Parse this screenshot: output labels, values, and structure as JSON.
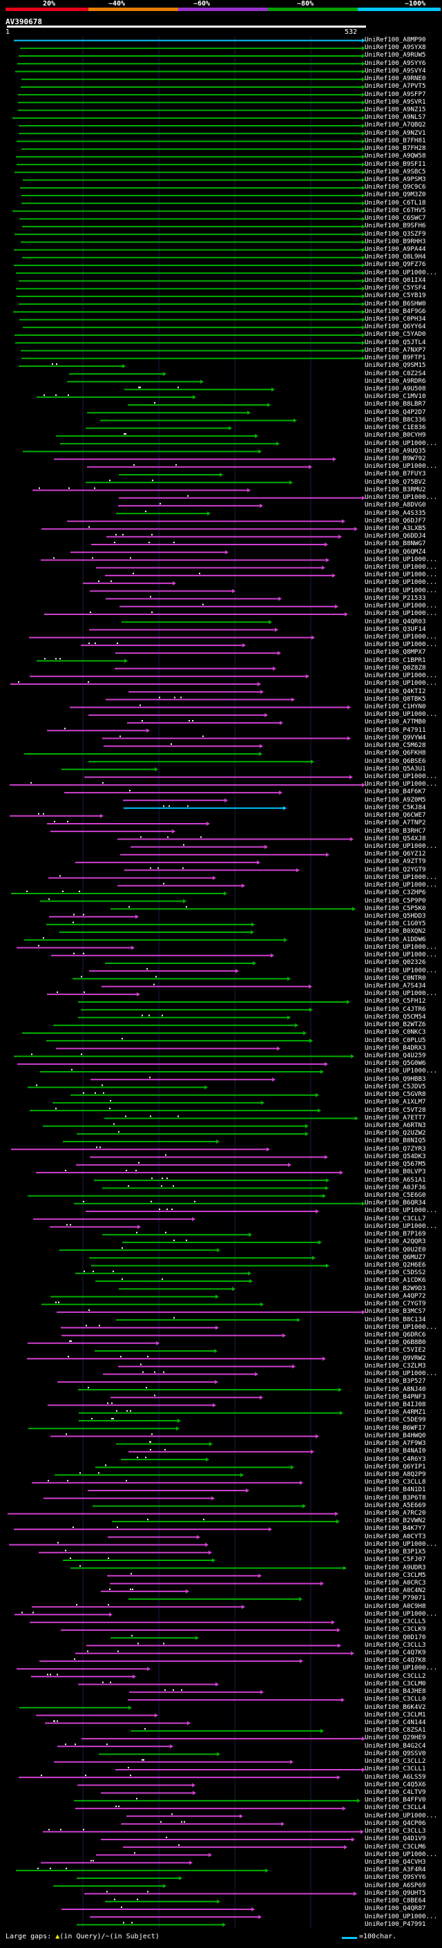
{
  "scale": {
    "labels": [
      "20%",
      "~40%",
      "~60%",
      "~80%",
      "~100%"
    ],
    "colors": [
      "#e8001a",
      "#e87d00",
      "#9933cc",
      "#00a000",
      "#00c8ff"
    ]
  },
  "query": {
    "name": "AV390678",
    "start": "1",
    "end": "532"
  },
  "hit_colors": {
    "cyan": "#00c8ff",
    "green": "#00b000",
    "magenta": "#d040d0"
  },
  "hits": [
    {
      "id": "UniRef100_A8MP90",
      "c": "cyan"
    },
    {
      "id": "UniRef100_A9SYX8",
      "c": "green"
    },
    {
      "id": "UniRef100_A9RUW5",
      "c": "green"
    },
    {
      "id": "UniRef100_A9SYY6",
      "c": "green"
    },
    {
      "id": "UniRef100_A9SVY4",
      "c": "green"
    },
    {
      "id": "UniRef100_A9RNE0",
      "c": "green"
    },
    {
      "id": "UniRef100_A7PVT5",
      "c": "green"
    },
    {
      "id": "UniRef100_A9SFP7",
      "c": "green"
    },
    {
      "id": "UniRef100_A9SVR1",
      "c": "green"
    },
    {
      "id": "UniRef100_A9NZ15",
      "c": "green"
    },
    {
      "id": "UniRef100_A9NLS7",
      "c": "green"
    },
    {
      "id": "UniRef100_A7QBQ2",
      "c": "green"
    },
    {
      "id": "UniRef100_A9NZV1",
      "c": "green"
    },
    {
      "id": "UniRef100_B7FH81",
      "c": "green"
    },
    {
      "id": "UniRef100_B7FH28",
      "c": "green"
    },
    {
      "id": "UniRef100_A9QW58",
      "c": "green"
    },
    {
      "id": "UniRef100_B9SFI1",
      "c": "green"
    },
    {
      "id": "UniRef100_A9SBC5",
      "c": "green"
    },
    {
      "id": "UniRef100_A9PSM3",
      "c": "green"
    },
    {
      "id": "UniRef100_Q9C9C6",
      "c": "green"
    },
    {
      "id": "UniRef100_Q9M3Z0",
      "c": "green"
    },
    {
      "id": "UniRef100_C6TL18",
      "c": "green"
    },
    {
      "id": "UniRef100_C6THV5",
      "c": "green"
    },
    {
      "id": "UniRef100_C6SWC7",
      "c": "green"
    },
    {
      "id": "UniRef100_B9SFH6",
      "c": "green"
    },
    {
      "id": "UniRef100_Q3SZF9",
      "c": "green"
    },
    {
      "id": "UniRef100_B9RHH3",
      "c": "green"
    },
    {
      "id": "UniRef100_A9PA44",
      "c": "green"
    },
    {
      "id": "UniRef100_Q8L9H4",
      "c": "green"
    },
    {
      "id": "UniRef100_Q9FZ76",
      "c": "green"
    },
    {
      "id": "UniRef100_UP1000...",
      "c": "green"
    },
    {
      "id": "UniRef100_Q01IX4",
      "c": "green"
    },
    {
      "id": "UniRef100_C5YSF4",
      "c": "green"
    },
    {
      "id": "UniRef100_C5YB19",
      "c": "green"
    },
    {
      "id": "UniRef100_B6SHW0",
      "c": "green"
    },
    {
      "id": "UniRef100_B4F9G6",
      "c": "green"
    },
    {
      "id": "UniRef100_C0PH34",
      "c": "green"
    },
    {
      "id": "UniRef100_Q6YY64",
      "c": "green"
    },
    {
      "id": "UniRef100_C5YAD0",
      "c": "green"
    },
    {
      "id": "UniRef100_Q5JTL4",
      "c": "green"
    },
    {
      "id": "UniRef100_A7NXP7",
      "c": "green"
    },
    {
      "id": "UniRef100_B9FTP1",
      "c": "green"
    },
    {
      "id": "UniRef100_Q9SM15",
      "c": "green"
    },
    {
      "id": "UniRef100_C0Z2S4",
      "c": "green"
    },
    {
      "id": "UniRef100_A9RDR6",
      "c": "green"
    },
    {
      "id": "UniRef100_A9U508",
      "c": "green"
    },
    {
      "id": "UniRef100_C1MV10",
      "c": "green"
    },
    {
      "id": "UniRef100_B8LBR7",
      "c": "green"
    },
    {
      "id": "UniRef100_Q4P2D7",
      "c": "green"
    },
    {
      "id": "UniRef100_B8C336",
      "c": "green"
    },
    {
      "id": "UniRef100_C1E836",
      "c": "green"
    },
    {
      "id": "UniRef100_B0CYH9",
      "c": "green"
    },
    {
      "id": "UniRef100_UP1000...",
      "c": "green"
    },
    {
      "id": "UniRef100_A9UQ35",
      "c": "green"
    },
    {
      "id": "UniRef100_B9W792",
      "c": "magenta"
    },
    {
      "id": "UniRef100_UP1000...",
      "c": "magenta"
    },
    {
      "id": "UniRef100_B7FUY3",
      "c": "green"
    },
    {
      "id": "UniRef100_Q75BV2",
      "c": "green"
    },
    {
      "id": "UniRef100_B3RMU2",
      "c": "magenta"
    },
    {
      "id": "UniRef100_UP1000...",
      "c": "magenta"
    },
    {
      "id": "UniRef100_A8DVG0",
      "c": "magenta"
    },
    {
      "id": "UniRef100_A4S335",
      "c": "green"
    },
    {
      "id": "UniRef100_Q6DJF7",
      "c": "magenta"
    },
    {
      "id": "UniRef100_A3LXB5",
      "c": "magenta"
    },
    {
      "id": "UniRef100_Q6DDJ4",
      "c": "magenta"
    },
    {
      "id": "UniRef100_B8NWG7",
      "c": "magenta"
    },
    {
      "id": "UniRef100_Q6QMZ4",
      "c": "magenta"
    },
    {
      "id": "UniRef100_UP1000...",
      "c": "magenta"
    },
    {
      "id": "UniRef100_UP1000...",
      "c": "magenta"
    },
    {
      "id": "UniRef100_UP1000...",
      "c": "magenta"
    },
    {
      "id": "UniRef100_UP1000...",
      "c": "magenta"
    },
    {
      "id": "UniRef100_UP1000...",
      "c": "magenta"
    },
    {
      "id": "UniRef100_P21533",
      "c": "magenta"
    },
    {
      "id": "UniRef100_UP1000...",
      "c": "magenta"
    },
    {
      "id": "UniRef100_UP1000...",
      "c": "magenta"
    },
    {
      "id": "UniRef100_Q4QR03",
      "c": "green"
    },
    {
      "id": "UniRef100_Q3UF14",
      "c": "magenta"
    },
    {
      "id": "UniRef100_UP1000...",
      "c": "magenta"
    },
    {
      "id": "UniRef100_UP1000...",
      "c": "magenta"
    },
    {
      "id": "UniRef100_Q8MPX7",
      "c": "magenta"
    },
    {
      "id": "UniRef100_C1BPR1",
      "c": "green"
    },
    {
      "id": "UniRef100_Q0Z8Z8",
      "c": "magenta"
    },
    {
      "id": "UniRef100_UP1000...",
      "c": "magenta"
    },
    {
      "id": "UniRef100_UP1000...",
      "c": "magenta"
    },
    {
      "id": "UniRef100_Q4KTI2",
      "c": "magenta"
    },
    {
      "id": "UniRef100_Q8TBK5",
      "c": "magenta"
    },
    {
      "id": "UniRef100_C1HYN0",
      "c": "magenta"
    },
    {
      "id": "UniRef100_UP1000...",
      "c": "magenta"
    },
    {
      "id": "UniRef100_A7TMB0",
      "c": "magenta"
    },
    {
      "id": "UniRef100_P47911",
      "c": "magenta"
    },
    {
      "id": "UniRef100_Q9VYW4",
      "c": "magenta"
    },
    {
      "id": "UniRef100_C5M628",
      "c": "magenta"
    },
    {
      "id": "UniRef100_Q6FKH8",
      "c": "green"
    },
    {
      "id": "UniRef100_Q6BSE6",
      "c": "green"
    },
    {
      "id": "UniRef100_Q5A3U1",
      "c": "green"
    },
    {
      "id": "UniRef100_UP1000...",
      "c": "magenta"
    },
    {
      "id": "UniRef100_UP1000...",
      "c": "magenta"
    },
    {
      "id": "UniRef100_B4F6K7",
      "c": "magenta"
    },
    {
      "id": "UniRef100_A9Z0M5",
      "c": "magenta"
    },
    {
      "id": "UniRef100_C5KJ84",
      "c": "cyan"
    },
    {
      "id": "UniRef100_Q6CWE7",
      "c": "magenta"
    },
    {
      "id": "UniRef100_A7TNP2",
      "c": "magenta"
    },
    {
      "id": "UniRef100_B3RHC7",
      "c": "magenta"
    },
    {
      "id": "UniRef100_Q54XJ8",
      "c": "magenta"
    },
    {
      "id": "UniRef100_UP1000...",
      "c": "magenta"
    },
    {
      "id": "UniRef100_Q6YZ12",
      "c": "magenta"
    },
    {
      "id": "UniRef100_A9ZTT9",
      "c": "magenta"
    },
    {
      "id": "UniRef100_Q2YGT9",
      "c": "magenta"
    },
    {
      "id": "UniRef100_UP1000...",
      "c": "magenta"
    },
    {
      "id": "UniRef100_UP1000...",
      "c": "magenta"
    },
    {
      "id": "UniRef100_C3ZHP6",
      "c": "green"
    },
    {
      "id": "UniRef100_C5P9P0",
      "c": "green"
    },
    {
      "id": "UniRef100_C5P5K0",
      "c": "green"
    },
    {
      "id": "UniRef100_Q5HDD3",
      "c": "magenta"
    },
    {
      "id": "UniRef100_C1G0Y5",
      "c": "green"
    },
    {
      "id": "UniRef100_B0XQN2",
      "c": "green"
    },
    {
      "id": "UniRef100_A1DDW6",
      "c": "green"
    },
    {
      "id": "UniRef100_UP1000...",
      "c": "magenta"
    },
    {
      "id": "UniRef100_UP1000...",
      "c": "magenta"
    },
    {
      "id": "UniRef100_Q02326",
      "c": "green"
    },
    {
      "id": "UniRef100_UP1000...",
      "c": "magenta"
    },
    {
      "id": "UniRef100_C0NTR0",
      "c": "green"
    },
    {
      "id": "UniRef100_A7S434",
      "c": "magenta"
    },
    {
      "id": "UniRef100_UP1000...",
      "c": "magenta"
    },
    {
      "id": "UniRef100_C5FH12",
      "c": "green"
    },
    {
      "id": "UniRef100_C4JTR6",
      "c": "green"
    },
    {
      "id": "UniRef100_Q5CM54",
      "c": "green"
    },
    {
      "id": "UniRef100_B2WTZ6",
      "c": "green"
    },
    {
      "id": "UniRef100_C0NKC3",
      "c": "green"
    },
    {
      "id": "UniRef100_C0PLU5",
      "c": "green"
    },
    {
      "id": "UniRef100_B4DRX3",
      "c": "magenta"
    },
    {
      "id": "UniRef100_Q4U259",
      "c": "green"
    },
    {
      "id": "UniRef100_Q5G0W6",
      "c": "magenta"
    },
    {
      "id": "UniRef100_UP1000...",
      "c": "green"
    },
    {
      "id": "UniRef100_Q9HBB3",
      "c": "magenta"
    },
    {
      "id": "UniRef100_C5JDV5",
      "c": "green"
    },
    {
      "id": "UniRef100_C5GVR8",
      "c": "green"
    },
    {
      "id": "UniRef100_A1XLM7",
      "c": "green"
    },
    {
      "id": "UniRef100_C5VT28",
      "c": "green"
    },
    {
      "id": "UniRef100_A7ETT7",
      "c": "green"
    },
    {
      "id": "UniRef100_A6RTN3",
      "c": "green"
    },
    {
      "id": "UniRef100_Q2UZW2",
      "c": "green"
    },
    {
      "id": "UniRef100_B8NIQ5",
      "c": "green"
    },
    {
      "id": "UniRef100_Q7ZYR3",
      "c": "magenta"
    },
    {
      "id": "UniRef100_Q54DK3",
      "c": "magenta"
    },
    {
      "id": "UniRef100_Q567M5",
      "c": "magenta"
    },
    {
      "id": "UniRef100_B0LVP3",
      "c": "magenta"
    },
    {
      "id": "UniRef100_A6S1A1",
      "c": "green"
    },
    {
      "id": "UniRef100_A0JF36",
      "c": "green"
    },
    {
      "id": "UniRef100_C5E6G0",
      "c": "green"
    },
    {
      "id": "UniRef100_B6QR34",
      "c": "green"
    },
    {
      "id": "UniRef100_UP1000...",
      "c": "magenta"
    },
    {
      "id": "UniRef100_C3CLL7",
      "c": "magenta"
    },
    {
      "id": "UniRef100_UP1000...",
      "c": "magenta"
    },
    {
      "id": "UniRef100_B7P169",
      "c": "green"
    },
    {
      "id": "UniRef100_A2QQR3",
      "c": "green"
    },
    {
      "id": "UniRef100_Q0U2E0",
      "c": "green"
    },
    {
      "id": "UniRef100_Q6MUZ7",
      "c": "green"
    },
    {
      "id": "UniRef100_Q2H6E6",
      "c": "green"
    },
    {
      "id": "UniRef100_C5DSS2",
      "c": "green"
    },
    {
      "id": "UniRef100_A1CDK6",
      "c": "green"
    },
    {
      "id": "UniRef100_B2W9D3",
      "c": "green"
    },
    {
      "id": "UniRef100_A4QP72",
      "c": "green"
    },
    {
      "id": "UniRef100_C7YGT9",
      "c": "green"
    },
    {
      "id": "UniRef100_B3MCS7",
      "c": "magenta"
    },
    {
      "id": "UniRef100_B8C134",
      "c": "green"
    },
    {
      "id": "UniRef100_UP1000...",
      "c": "magenta"
    },
    {
      "id": "UniRef100_Q6DRC6",
      "c": "magenta"
    },
    {
      "id": "UniRef100_Q6B8B0",
      "c": "magenta"
    },
    {
      "id": "UniRef100_C5VIE2",
      "c": "green"
    },
    {
      "id": "UniRef100_Q9VRW2",
      "c": "magenta"
    },
    {
      "id": "UniRef100_C3ZLM3",
      "c": "magenta"
    },
    {
      "id": "UniRef100_UP1000...",
      "c": "magenta"
    },
    {
      "id": "UniRef100_B3P527",
      "c": "magenta"
    },
    {
      "id": "UniRef100_A8NJ40",
      "c": "green"
    },
    {
      "id": "UniRef100_B4PNF3",
      "c": "magenta"
    },
    {
      "id": "UniRef100_B4IJ08",
      "c": "magenta"
    },
    {
      "id": "UniRef100_A4RMZ1",
      "c": "green"
    },
    {
      "id": "UniRef100_C5DE99",
      "c": "green"
    },
    {
      "id": "UniRef100_B6WFI7",
      "c": "green"
    },
    {
      "id": "UniRef100_B4HWQ0",
      "c": "magenta"
    },
    {
      "id": "UniRef100_A7F9W3",
      "c": "green"
    },
    {
      "id": "UniRef100_B4NAI0",
      "c": "magenta"
    },
    {
      "id": "UniRef100_C4R6Y3",
      "c": "green"
    },
    {
      "id": "UniRef100_Q6YIP1",
      "c": "green"
    },
    {
      "id": "UniRef100_A8Q2P9",
      "c": "green"
    },
    {
      "id": "UniRef100_C3CLL8",
      "c": "magenta"
    },
    {
      "id": "UniRef100_B4N1D1",
      "c": "magenta"
    },
    {
      "id": "UniRef100_B3P6T8",
      "c": "magenta"
    },
    {
      "id": "UniRef100_A5E669",
      "c": "green"
    },
    {
      "id": "UniRef100_A7RC20",
      "c": "magenta"
    },
    {
      "id": "UniRef100_B2VWN2",
      "c": "green"
    },
    {
      "id": "UniRef100_B4K7Y7",
      "c": "magenta"
    },
    {
      "id": "UniRef100_A0CYT3",
      "c": "magenta"
    },
    {
      "id": "UniRef100_UP1000...",
      "c": "magenta"
    },
    {
      "id": "UniRef100_B3P1X5",
      "c": "magenta"
    },
    {
      "id": "UniRef100_C5FJ07",
      "c": "green"
    },
    {
      "id": "UniRef100_A9UDR3",
      "c": "green"
    },
    {
      "id": "UniRef100_C3CLM5",
      "c": "magenta"
    },
    {
      "id": "UniRef100_A0CRC3",
      "c": "magenta"
    },
    {
      "id": "UniRef100_A0C4N2",
      "c": "magenta"
    },
    {
      "id": "UniRef100_P79071",
      "c": "green"
    },
    {
      "id": "UniRef100_A0C9H8",
      "c": "magenta"
    },
    {
      "id": "UniRef100_UP1000...",
      "c": "magenta"
    },
    {
      "id": "UniRef100_C3CLL5",
      "c": "magenta"
    },
    {
      "id": "UniRef100_C3CLK9",
      "c": "magenta"
    },
    {
      "id": "UniRef100_Q0D170",
      "c": "green"
    },
    {
      "id": "UniRef100_C3CLL3",
      "c": "magenta"
    },
    {
      "id": "UniRef100_C4Q7K9",
      "c": "magenta"
    },
    {
      "id": "UniRef100_C4Q7K8",
      "c": "magenta"
    },
    {
      "id": "UniRef100_UP1000...",
      "c": "magenta"
    },
    {
      "id": "UniRef100_C3CLL2",
      "c": "magenta"
    },
    {
      "id": "UniRef100_C3CLM0",
      "c": "magenta"
    },
    {
      "id": "UniRef100_B4JHE8",
      "c": "magenta"
    },
    {
      "id": "UniRef100_C3CLL0",
      "c": "magenta"
    },
    {
      "id": "UniRef100_B6K4V2",
      "c": "green"
    },
    {
      "id": "UniRef100_C3CLM1",
      "c": "magenta"
    },
    {
      "id": "UniRef100_C4N144",
      "c": "magenta"
    },
    {
      "id": "UniRef100_C8ZSA1",
      "c": "green"
    },
    {
      "id": "UniRef100_Q29HE9",
      "c": "magenta"
    },
    {
      "id": "UniRef100_B4G2C4",
      "c": "magenta"
    },
    {
      "id": "UniRef100_Q9SSV0",
      "c": "green"
    },
    {
      "id": "UniRef100_C3CLL2",
      "c": "magenta"
    },
    {
      "id": "UniRef100_C3CLL1",
      "c": "magenta"
    },
    {
      "id": "UniRef100_A6LS59",
      "c": "magenta"
    },
    {
      "id": "UniRef100_C4Q5X6",
      "c": "magenta"
    },
    {
      "id": "UniRef100_C4LTV9",
      "c": "magenta"
    },
    {
      "id": "UniRef100_B4FFV0",
      "c": "green"
    },
    {
      "id": "UniRef100_C3CLL4",
      "c": "magenta"
    },
    {
      "id": "UniRef100_UP1000...",
      "c": "magenta"
    },
    {
      "id": "UniRef100_Q4CP06",
      "c": "magenta"
    },
    {
      "id": "UniRef100_C3CLL3",
      "c": "magenta"
    },
    {
      "id": "UniRef100_Q4D1V9",
      "c": "magenta"
    },
    {
      "id": "UniRef100_C3CLM6",
      "c": "magenta"
    },
    {
      "id": "UniRef100_UP1000...",
      "c": "magenta"
    },
    {
      "id": "UniRef100_Q4CVH3",
      "c": "magenta"
    },
    {
      "id": "UniRef100_A3F4R4",
      "c": "green"
    },
    {
      "id": "UniRef100_Q9SYY6",
      "c": "green"
    },
    {
      "id": "UniRef100_A6SP69",
      "c": "green"
    },
    {
      "id": "UniRef100_Q9UHT5",
      "c": "magenta"
    },
    {
      "id": "UniRef100_C8BE64",
      "c": "green"
    },
    {
      "id": "UniRef100_Q4QR87",
      "c": "magenta"
    },
    {
      "id": "UniRef100_UP1000...",
      "c": "magenta"
    },
    {
      "id": "UniRef100_P47991",
      "c": "green"
    }
  ],
  "legend": {
    "gaps_label": "Large gaps:",
    "gap_query_symbol": "▲",
    "gap_query_text": "(in Query)/",
    "gap_subject_symbol": "~",
    "gap_subject_text": "(in Subject)",
    "line_label": "=100char."
  }
}
